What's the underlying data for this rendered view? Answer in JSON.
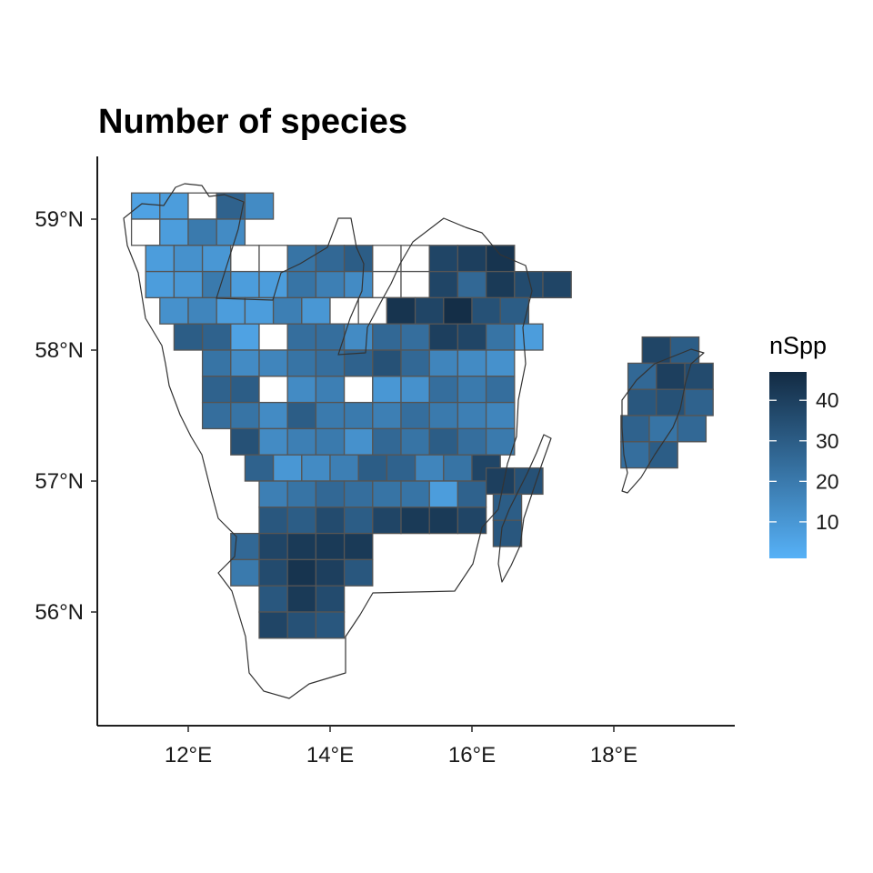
{
  "chart_data": {
    "type": "heatmap",
    "title": "Number of species",
    "xlabel": "",
    "ylabel": "",
    "x_ticks": [
      {
        "value": 12,
        "label": "12°E"
      },
      {
        "value": 14,
        "label": "14°E"
      },
      {
        "value": 16,
        "label": "16°E"
      },
      {
        "value": 18,
        "label": "18°E"
      }
    ],
    "y_ticks": [
      {
        "value": 56,
        "label": "56°N"
      },
      {
        "value": 57,
        "label": "57°N"
      },
      {
        "value": 58,
        "label": "58°N"
      },
      {
        "value": 59,
        "label": "59°N"
      }
    ],
    "xlim": [
      10.7,
      19.6
    ],
    "ylim": [
      55.15,
      59.5
    ],
    "grid": false,
    "legend": {
      "title": "nSpp",
      "position": "right",
      "range": [
        1,
        47
      ],
      "breaks": [
        10,
        20,
        30,
        40
      ],
      "labels": [
        "10",
        "20",
        "30",
        "40"
      ],
      "low_color": "#56B1F7",
      "high_color": "#132B43"
    },
    "colors": {
      "cell_border": "#555555",
      "region_outline": "#333333",
      "missing": "#ffffff"
    },
    "cell_size_deg": {
      "lon": 0.4,
      "lat": 0.2
    },
    "rows": [
      {
        "lat": 59.0,
        "lon_start": 11.2,
        "values": [
          6,
          8,
          null,
          28,
          14
        ]
      },
      {
        "lat": 58.8,
        "lon_start": 11.2,
        "values": [
          null,
          8,
          20,
          14
        ]
      },
      {
        "lat": 58.6,
        "lon_start": 11.4,
        "values": [
          8,
          12,
          10,
          null,
          null,
          22,
          26,
          30,
          null,
          null,
          38,
          40,
          44
        ]
      },
      {
        "lat": 58.4,
        "lon_start": 11.4,
        "values": [
          8,
          10,
          20,
          8,
          8,
          22,
          18,
          14,
          null,
          null,
          38,
          26,
          42,
          36,
          38
        ]
      },
      {
        "lat": 58.2,
        "lon_start": 11.6,
        "values": [
          12,
          16,
          8,
          8,
          18,
          10,
          null,
          null,
          44,
          38,
          46,
          34,
          30
        ]
      },
      {
        "lat": 58.0,
        "lon_start": 11.8,
        "values": [
          30,
          28,
          6,
          null,
          24,
          24,
          14,
          26,
          24,
          40,
          38,
          22,
          8
        ]
      },
      {
        "lat": 57.8,
        "lon_start": 12.2,
        "values": [
          22,
          14,
          16,
          22,
          24,
          28,
          34,
          26,
          16,
          14,
          12
        ]
      },
      {
        "lat": 57.6,
        "lon_start": 12.2,
        "values": [
          28,
          30,
          null,
          14,
          18,
          null,
          10,
          12,
          24,
          20,
          24
        ]
      },
      {
        "lat": 57.4,
        "lon_start": 12.2,
        "values": [
          24,
          22,
          14,
          30,
          20,
          20,
          18,
          24,
          20,
          18,
          16
        ]
      },
      {
        "lat": 57.2,
        "lon_start": 12.6,
        "values": [
          34,
          14,
          18,
          20,
          12,
          26,
          22,
          30,
          24,
          20
        ]
      },
      {
        "lat": 57.0,
        "lon_start": 12.8,
        "values": [
          28,
          10,
          14,
          18,
          30,
          28,
          16,
          22,
          38
        ]
      },
      {
        "lat": 56.8,
        "lon_start": 13.0,
        "values": [
          18,
          22,
          26,
          24,
          22,
          22,
          8,
          28
        ]
      },
      {
        "lat": 56.6,
        "lon_start": 13.0,
        "values": [
          32,
          30,
          36,
          30,
          38,
          42,
          42,
          38
        ]
      },
      {
        "lat": 56.4,
        "lon_start": 12.6,
        "values": [
          26,
          38,
          42,
          42,
          42
        ]
      },
      {
        "lat": 56.2,
        "lon_start": 12.6,
        "values": [
          20,
          36,
          44,
          40,
          32
        ]
      },
      {
        "lat": 56.0,
        "lon_start": 13.0,
        "values": [
          32,
          42,
          36
        ]
      },
      {
        "lat": 55.8,
        "lon_start": 13.0,
        "values": [
          38,
          34,
          32
        ]
      },
      {
        "lat": 56.9,
        "lon_start": 16.2,
        "values": [
          40,
          34
        ]
      },
      {
        "lat": 56.7,
        "lon_start": 16.3,
        "values": [
          30
        ]
      },
      {
        "lat": 56.5,
        "lon_start": 16.3,
        "values": [
          32
        ]
      },
      {
        "lat": 57.9,
        "lon_start": 18.4,
        "values": [
          38,
          30
        ]
      },
      {
        "lat": 57.7,
        "lon_start": 18.2,
        "values": [
          26,
          40,
          36
        ]
      },
      {
        "lat": 57.5,
        "lon_start": 18.2,
        "values": [
          32,
          34,
          28
        ]
      },
      {
        "lat": 57.3,
        "lon_start": 18.1,
        "values": [
          28,
          22,
          26
        ]
      },
      {
        "lat": 57.1,
        "lon_start": 18.1,
        "values": [
          24,
          30
        ]
      }
    ]
  }
}
